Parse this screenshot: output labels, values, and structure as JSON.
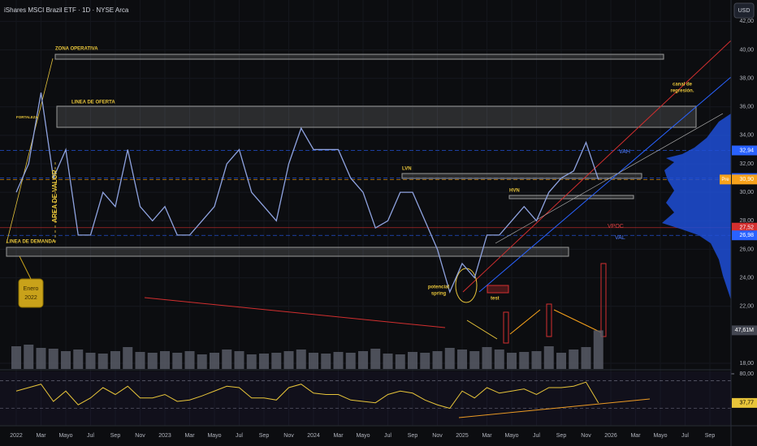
{
  "chart_data": {
    "type": "line",
    "title": "iShares MSCI Brazil ETF · 1D · NYSE Arca",
    "currency": "USD",
    "categories": [
      "2022",
      null,
      "Mar",
      null,
      "Mayo",
      null,
      "Jul",
      null,
      "Sep",
      null,
      "Nov",
      null,
      "2023",
      null,
      "Mar",
      null,
      "Mayo",
      null,
      "Jul",
      null,
      "Sep",
      null,
      "Nov",
      null,
      "2024",
      null,
      "Mar",
      null,
      "Mayo",
      null,
      "Jul",
      null,
      "Sep",
      null,
      "Nov",
      null,
      "2025",
      null,
      "Mar",
      null,
      "Mayo",
      null,
      "Jul",
      null,
      "Sep",
      null,
      "Nov",
      null,
      "2026",
      null,
      "Mar",
      null,
      "Mayo",
      null,
      "Jul",
      null,
      "Sep"
    ],
    "values": [
      30,
      32,
      37,
      31,
      33,
      27,
      27,
      30,
      29,
      33,
      29,
      28,
      29,
      27,
      27,
      28,
      29,
      32,
      33,
      30,
      29,
      28,
      32,
      34.5,
      33,
      33,
      33,
      31,
      30,
      27.5,
      28,
      30,
      30,
      28,
      26,
      23,
      25,
      24,
      27,
      27,
      28,
      29,
      28,
      30,
      31,
      31.5,
      33.5,
      30.9,
      null,
      null,
      null,
      null,
      null,
      null,
      null,
      null,
      null
    ],
    "color": "#8fa3e0",
    "volume_values": [
      28,
      30,
      26,
      25,
      22,
      24,
      20,
      19,
      22,
      27,
      21,
      20,
      22,
      20,
      22,
      18,
      20,
      24,
      22,
      18,
      19,
      20,
      22,
      24,
      20,
      19,
      21,
      20,
      22,
      25,
      19,
      18,
      21,
      20,
      22,
      26,
      24,
      22,
      27,
      24,
      20,
      21,
      22,
      28,
      20,
      24,
      27,
      47.61,
      null,
      null,
      null,
      null,
      null,
      null,
      null,
      null,
      null
    ],
    "volume_color": "#5d606b",
    "volume_lim": [
      0,
      70
    ],
    "volume_label": {
      "value": 47.61,
      "label": "47,61M"
    },
    "rsi_values": [
      55,
      60,
      65,
      40,
      55,
      35,
      45,
      60,
      50,
      62,
      45,
      45,
      50,
      40,
      42,
      48,
      55,
      62,
      60,
      45,
      45,
      42,
      60,
      65,
      52,
      50,
      50,
      42,
      40,
      38,
      50,
      55,
      52,
      42,
      35,
      30,
      55,
      45,
      60,
      52,
      55,
      58,
      50,
      60,
      60,
      62,
      68,
      37.77,
      null,
      null,
      null,
      null,
      null,
      null,
      null,
      null,
      null
    ],
    "rsi_color": "#e8c53a",
    "rsi_lim": [
      4.7,
      83.5
    ],
    "rsi_ticks": [
      {
        "value": 80,
        "label": "80,00"
      }
    ],
    "rsi_bands": [
      70,
      30
    ],
    "rsi_label": {
      "value": 37.77,
      "label": "37,77"
    },
    "ylim": [
      17.6,
      43.5
    ],
    "yticks": [
      {
        "value": 18,
        "label": "18,00"
      },
      {
        "value": 22,
        "label": "22,00"
      },
      {
        "value": 24,
        "label": "24,00"
      },
      {
        "value": 26,
        "label": "26,00"
      },
      {
        "value": 28,
        "label": "28,00"
      },
      {
        "value": 30,
        "label": "30,00"
      },
      {
        "value": 32,
        "label": "32,00"
      },
      {
        "value": 34,
        "label": "34,00"
      },
      {
        "value": 36,
        "label": "36,00"
      },
      {
        "value": 38,
        "label": "38,00"
      },
      {
        "value": 40,
        "label": "40,00"
      },
      {
        "value": 42,
        "label": "42,00"
      }
    ],
    "price_labels": [
      {
        "value": 32.94,
        "label": "32,94",
        "color": "#2962ff"
      },
      {
        "value": 31.0,
        "label": "31,00",
        "color": "#2962ff"
      },
      {
        "value": 30.9,
        "label": "30,90",
        "color": "#f7a21b"
      },
      {
        "value": 27.52,
        "label": "27,52",
        "color": "#d32f2f"
      },
      {
        "value": 26.98,
        "label": "26,98",
        "color": "#2962ff"
      }
    ],
    "pre_label": "Pre",
    "annotations": {
      "zona_operativa": "ZONA OPERATIVA",
      "linea_oferta": "LINEA DE OFERTA",
      "fortaleza": "FORTALEZA",
      "area_valor": "AREA DE VALOR",
      "linea_demanda": "LINEA DE DEMANDA",
      "enero": [
        "Enero",
        "2022"
      ],
      "lvn": "LVN",
      "hvn": "HVN",
      "vah": "VAH",
      "vpoc": "VPOC",
      "val": "VAL",
      "canal": [
        "canal de",
        "regresión."
      ],
      "spring": [
        "potencial",
        "spring"
      ],
      "test": "test"
    }
  }
}
